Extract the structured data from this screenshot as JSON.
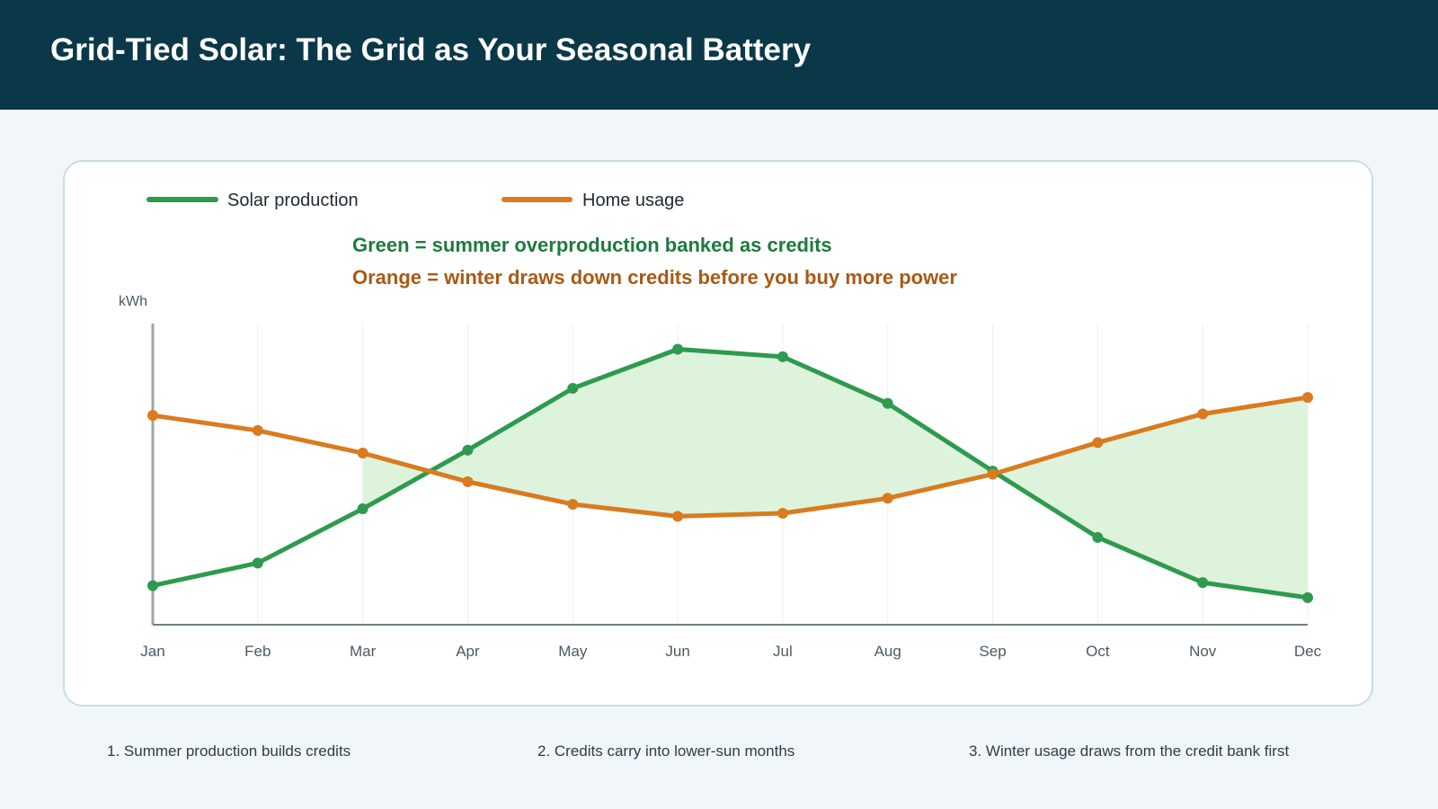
{
  "header": {
    "title": "Grid-Tied Solar: The Grid as Your Seasonal Battery"
  },
  "colors": {
    "header_bg": "#0b3849",
    "solar": "#2e9a4e",
    "usage": "#d97b1e",
    "fill": "#def3dc",
    "annotation_green": "#1e7a3f",
    "annotation_orange": "#a85a14"
  },
  "legend": {
    "solar_label": "Solar production",
    "usage_label": "Home usage"
  },
  "annotations": {
    "line1": "Green = summer overproduction banked as credits",
    "line2": "Orange = winter draws down credits before you buy more power"
  },
  "footer": {
    "step1": "1. Summer production builds credits",
    "step2": "2. Credits carry into lower-sun months",
    "step3": "3. Winter usage draws from the credit bank first"
  },
  "chart_data": {
    "type": "line",
    "ylabel": "kWh",
    "xlabel": "",
    "categories": [
      "Jan",
      "Feb",
      "Mar",
      "Apr",
      "May",
      "Jun",
      "Jul",
      "Aug",
      "Sep",
      "Oct",
      "Nov",
      "Dec"
    ],
    "ylim": [
      0,
      100
    ],
    "y_ticks_shown": false,
    "grid": "vertical",
    "legend_position": "top-left",
    "series": [
      {
        "name": "Solar production",
        "color": "#2e9a4e",
        "values": [
          13,
          20.5,
          38.5,
          58,
          78.5,
          91.5,
          89,
          73.5,
          51,
          29,
          14,
          9
        ]
      },
      {
        "name": "Home usage",
        "color": "#d97b1e",
        "values": [
          69.5,
          64.5,
          57,
          47.5,
          40,
          36,
          37,
          42,
          50,
          60.5,
          70,
          75.5
        ]
      }
    ],
    "shaded_regions": [
      {
        "from": "Mar",
        "to": "Dec",
        "meaning": "gap between solar and usage",
        "color": "#def3dc"
      }
    ]
  }
}
